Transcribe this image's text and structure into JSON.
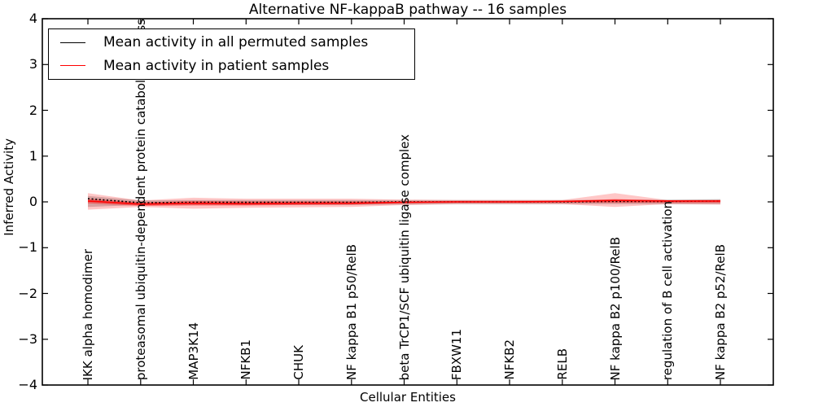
{
  "chart_data": {
    "type": "line",
    "title": "Alternative NF-kappaB pathway -- 16 samples",
    "xlabel": "Cellular Entities",
    "ylabel": "Inferred Activity",
    "ylim": [
      -4,
      4
    ],
    "ytick_labels": [
      "4",
      "3",
      "2",
      "1",
      "0",
      "−1",
      "−2",
      "−3",
      "−4"
    ],
    "ytick_values": [
      4,
      3,
      2,
      1,
      0,
      -1,
      -2,
      -3,
      -4
    ],
    "grid": false,
    "legend_position": "upper left",
    "categories": [
      "IKK alpha homodimer",
      "proteasomal ubiquitin-dependent protein catabolic process",
      "MAP3K14",
      "NFKB1",
      "CHUK",
      "NF kappa B1 p50/RelB",
      "beta TrCP1/SCF ubiquitin ligase complex",
      "FBXW11",
      "NFKB2",
      "RELB",
      "NF kappa B2 p100/RelB",
      "regulation of B cell activation",
      "NF kappa B2 p52/RelB"
    ],
    "series": [
      {
        "name": "Mean activity in all permuted samples",
        "color": "#000000",
        "line_style": "dotted",
        "values": [
          0.07,
          -0.02,
          -0.01,
          -0.01,
          -0.01,
          -0.01,
          0.0,
          0.0,
          0.0,
          0.0,
          0.01,
          0.01,
          0.02
        ]
      },
      {
        "name": "Mean activity in patient samples",
        "color": "#ff0000",
        "line_style": "solid",
        "values": [
          0.02,
          -0.05,
          -0.03,
          -0.04,
          -0.03,
          -0.03,
          -0.01,
          0.0,
          0.0,
          0.01,
          0.03,
          0.02,
          0.02
        ]
      }
    ],
    "bands": [
      {
        "name": "permuted samples std band",
        "color": "#c9c9c9",
        "opacity": 0.9,
        "upper": [
          0.13,
          0.03,
          0.04,
          0.04,
          0.04,
          0.04,
          0.04,
          0.04,
          0.04,
          0.04,
          0.05,
          0.05,
          0.06
        ],
        "lower": [
          -0.11,
          -0.07,
          -0.07,
          -0.07,
          -0.07,
          -0.07,
          -0.06,
          -0.05,
          -0.05,
          -0.05,
          -0.05,
          -0.05,
          -0.05
        ]
      },
      {
        "name": "patient samples outer band",
        "color": "#ff0000",
        "opacity": 0.22,
        "upper": [
          0.19,
          0.03,
          0.09,
          0.07,
          0.07,
          0.07,
          0.05,
          0.04,
          0.04,
          0.04,
          0.19,
          0.04,
          0.05
        ],
        "lower": [
          -0.17,
          -0.11,
          -0.15,
          -0.13,
          -0.12,
          -0.11,
          -0.07,
          -0.05,
          -0.05,
          -0.05,
          -0.11,
          -0.05,
          -0.06
        ]
      },
      {
        "name": "patient samples inner band",
        "color": "#ff0000",
        "opacity": 0.38,
        "upper": [
          0.07,
          -0.01,
          0.02,
          0.01,
          0.01,
          0.01,
          0.01,
          0.02,
          0.02,
          0.02,
          0.06,
          0.03,
          0.03
        ],
        "lower": [
          -0.03,
          -0.09,
          -0.08,
          -0.08,
          -0.07,
          -0.06,
          -0.03,
          -0.02,
          -0.02,
          -0.02,
          -0.02,
          -0.02,
          -0.02
        ]
      }
    ]
  }
}
